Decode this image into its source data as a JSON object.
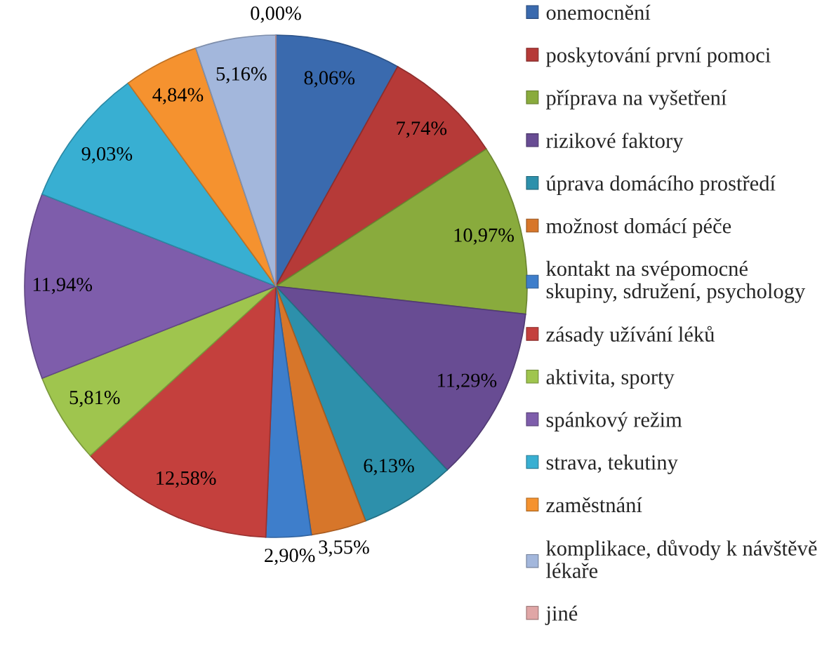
{
  "chart_data": {
    "type": "pie",
    "categories": [
      "onemocnění",
      "poskytování první pomoci",
      "příprava na vyšetření",
      "rizikové faktory",
      "úprava domácího prostředí",
      "možnost domácí péče",
      "kontakt na svépomocné\nskupiny, sdružení, psychology",
      "zásady užívání léků",
      "aktivita, sporty",
      "spánkový režim",
      "strava, tekutiny",
      "zaměstnání",
      "komplikace, důvody k návštěvě\nlékaře",
      "jiné"
    ],
    "values": [
      8.06,
      7.74,
      10.97,
      11.29,
      6.13,
      3.55,
      2.9,
      12.58,
      5.81,
      11.94,
      9.03,
      4.84,
      5.16,
      0.0
    ],
    "value_labels": [
      "8,06%",
      "7,74%",
      "10,97%",
      "11,29%",
      "6,13%",
      "3,55%",
      "2,90%",
      "12,58%",
      "5,81%",
      "11,94%",
      "9,03%",
      "4,84%",
      "5,16%",
      "0,00%"
    ],
    "colors": [
      "#3a6aae",
      "#b63a38",
      "#89ab3d",
      "#684c93",
      "#2d90ab",
      "#d7762a",
      "#3e7ecb",
      "#c4403d",
      "#9fc54e",
      "#7e5dab",
      "#38afd2",
      "#f5922f",
      "#a3b7dc",
      "#e0a6a6"
    ],
    "legend": "right"
  }
}
